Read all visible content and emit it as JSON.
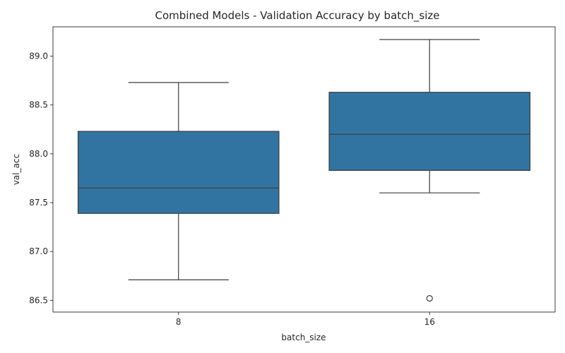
{
  "chart_data": {
    "type": "box",
    "title": "Combined Models - Validation Accuracy by batch_size",
    "xlabel": "batch_size",
    "ylabel": "val_acc",
    "categories": [
      "8",
      "16"
    ],
    "ylim": [
      86.38,
      89.3
    ],
    "yticks": [
      86.5,
      87.0,
      87.5,
      88.0,
      88.5,
      89.0
    ],
    "ytick_labels": [
      "86.5",
      "87.0",
      "87.5",
      "88.0",
      "88.5",
      "89.0"
    ],
    "box_color": "#3274a1",
    "line_color": "#3d3d3d",
    "grid": false,
    "legend": "none",
    "boxes": [
      {
        "category": "8",
        "whisker_low": 86.71,
        "q1": 87.39,
        "median": 87.65,
        "q3": 88.23,
        "whisker_high": 88.73,
        "outliers": []
      },
      {
        "category": "16",
        "whisker_low": 87.6,
        "q1": 87.83,
        "median": 88.2,
        "q3": 88.63,
        "whisker_high": 89.17,
        "outliers": [
          86.52
        ]
      }
    ]
  }
}
